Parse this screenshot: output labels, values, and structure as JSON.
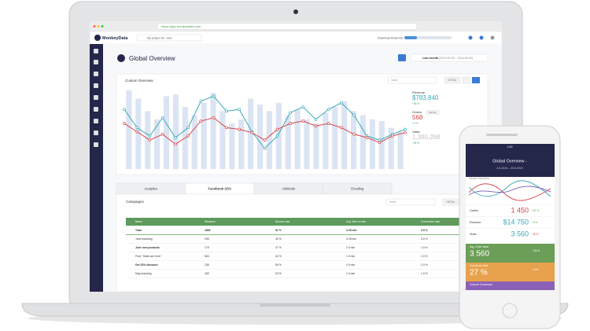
{
  "browser": {
    "url": "https://app.monkeydata.com"
  },
  "app": {
    "logo": "MonkeyData",
    "project": "My project 33 - cars",
    "download": "Download Reservoir"
  },
  "page": {
    "title": "Global Overview",
    "date_label": "Last month",
    "date_range": "(2015-09-09 – 2015-09-09)"
  },
  "overview": {
    "title": "Custom Overview",
    "select": "Value",
    "detail": "DETAIL",
    "chart_data": {
      "type": "bar-line",
      "bar_color": "#dbe4f2",
      "bars": [
        95,
        85,
        70,
        60,
        88,
        90,
        75,
        65,
        80,
        92,
        70,
        55,
        60,
        85,
        78,
        70,
        80,
        65,
        72,
        60,
        55,
        68,
        75,
        82,
        70,
        65,
        60,
        58,
        50,
        45
      ],
      "series": [
        {
          "color": "#3aa9b8",
          "values": [
            72,
            50,
            40,
            62,
            38,
            50,
            82,
            88,
            70,
            72,
            45,
            25,
            40,
            68,
            75,
            60,
            72,
            80,
            65,
            40,
            35,
            42,
            48
          ]
        },
        {
          "color": "#d9454a",
          "values": [
            55,
            45,
            35,
            42,
            30,
            40,
            58,
            62,
            50,
            48,
            44,
            35,
            48,
            55,
            58,
            52,
            55,
            50,
            42,
            38,
            32,
            40,
            44
          ]
        }
      ]
    },
    "metrics": [
      {
        "name": "Revenue",
        "value": "$783,840",
        "change": "+36 %"
      },
      {
        "name": "Orders",
        "value": "568",
        "change": "+0 %",
        "detail": "DETAIL"
      },
      {
        "name": "Visits",
        "value": "1,380,268",
        "change": "+36 %"
      }
    ]
  },
  "tabs": [
    "Analytics",
    "Facebook ADS",
    "AdWords",
    "Emailing"
  ],
  "campaigns": {
    "title": "Campaigns",
    "select": "Value",
    "detail": "DETAIL",
    "table": {
      "header": [
        "Name",
        "Sessions",
        "Bounce rate",
        "Avg. time on site",
        "Conversion rate"
      ],
      "rows": [
        [
          "Total",
          "1869",
          "51 %",
          "3.25 min",
          "3.5 %"
        ],
        [
          "June branding",
          "298",
          "45 %",
          "3.25 min",
          "3.5 %"
        ],
        [
          "June new products",
          "175",
          "47 %",
          "2.0 min",
          "1.0 %"
        ],
        [
          "Post: \"Sales are here.\"",
          "563",
          "42 %",
          "1.0 min",
          "1.0 %"
        ],
        [
          "Get 20% discount",
          "236",
          "56 %",
          "4.0 min",
          "2.0 %"
        ],
        [
          "May branding",
          "180",
          "53 %",
          "1.0 min",
          "1.0 %"
        ]
      ]
    }
  },
  "phone": {
    "time": "1:00",
    "title": "Global Overview -",
    "date": "4.9.2015 – 20.5.2015",
    "chart_title": "Global Overview",
    "rows": [
      {
        "name": "Orders",
        "value": "1 450",
        "change": "+25 %"
      },
      {
        "name": "Revenue",
        "value": "$14 750",
        "change": "+6 %"
      },
      {
        "name": "Visits",
        "value": "3 560",
        "change": "-36 %"
      }
    ],
    "tiles": [
      {
        "name": "Avg. Order Value",
        "value": "3 560",
        "change": "+36 %"
      },
      {
        "name": "Conversion Rate",
        "value": "27 %",
        "change": "+0 %"
      },
      {
        "name": "Cost per Conversion"
      }
    ]
  }
}
